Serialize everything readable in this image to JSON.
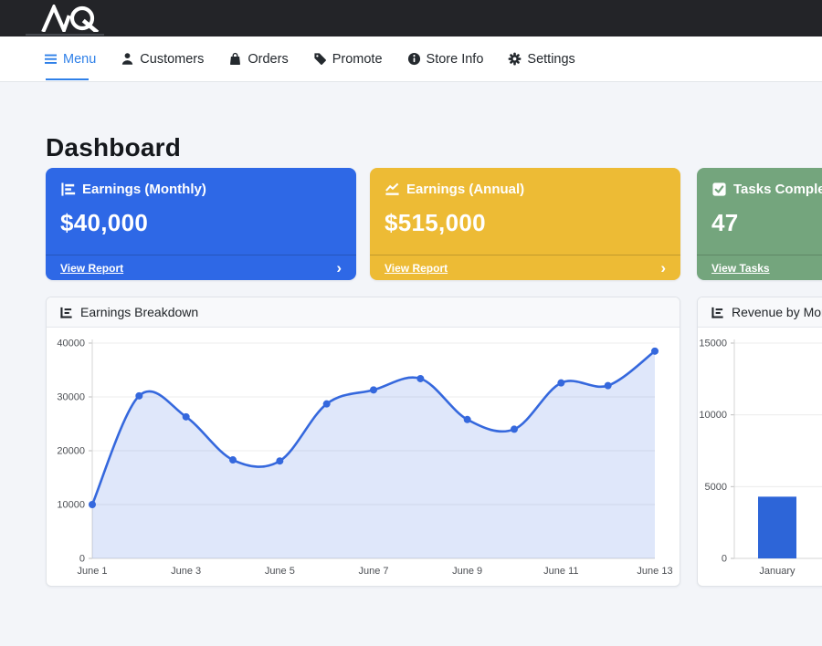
{
  "topbar": {
    "logo_text": "AQ"
  },
  "nav": {
    "items": [
      {
        "label": "Menu",
        "icon": "hamburger-icon",
        "active": true
      },
      {
        "label": "Customers",
        "icon": "person-icon",
        "active": false
      },
      {
        "label": "Orders",
        "icon": "shopping-bag-icon",
        "active": false
      },
      {
        "label": "Promote",
        "icon": "tag-icon",
        "active": false
      },
      {
        "label": "Store Info",
        "icon": "info-circle-icon",
        "active": false
      },
      {
        "label": "Settings",
        "icon": "gear-icon",
        "active": false
      }
    ]
  },
  "page": {
    "title": "Dashboard"
  },
  "ui": {
    "chevron": "›"
  },
  "stat_cards": [
    {
      "title": "Earnings (Monthly)",
      "value": "$40,000",
      "link": "View Report",
      "color": "#2e68e6",
      "icon": "bar-chart-icon"
    },
    {
      "title": "Earnings (Annual)",
      "value": "$515,000",
      "link": "View Report",
      "color": "#edbb35",
      "icon": "line-chart-icon"
    },
    {
      "title": "Tasks Completed",
      "value": "47",
      "link": "View Tasks",
      "color": "#74a57d",
      "icon": "check-square-icon"
    }
  ],
  "chart_data": [
    {
      "type": "line",
      "title": "Earnings Breakdown",
      "x": [
        "June 1",
        "June 2",
        "June 3",
        "June 4",
        "June 5",
        "June 6",
        "June 7",
        "June 8",
        "June 9",
        "June 10",
        "June 11",
        "June 12",
        "June 13"
      ],
      "values": [
        10000,
        30200,
        26300,
        18300,
        18100,
        28700,
        31300,
        33400,
        25800,
        24000,
        32600,
        32100,
        38500
      ],
      "x_tick_labels": [
        "June 1",
        "June 3",
        "June 5",
        "June 7",
        "June 9",
        "June 11",
        "June 13"
      ],
      "ylim": [
        0,
        40000
      ],
      "yticks": [
        0,
        10000,
        20000,
        30000,
        40000
      ],
      "grid": true,
      "legend": "none",
      "line_color": "#3568dd",
      "fill_color": "rgba(53,104,221,0.16)"
    },
    {
      "type": "bar",
      "title": "Revenue by Month",
      "categories": [
        "January"
      ],
      "values": [
        4300
      ],
      "ylim": [
        0,
        15000
      ],
      "yticks": [
        0,
        5000,
        10000,
        15000
      ],
      "grid": true,
      "legend": "none",
      "bar_color": "#2d65d8",
      "note": "card clipped by viewport right edge"
    }
  ]
}
